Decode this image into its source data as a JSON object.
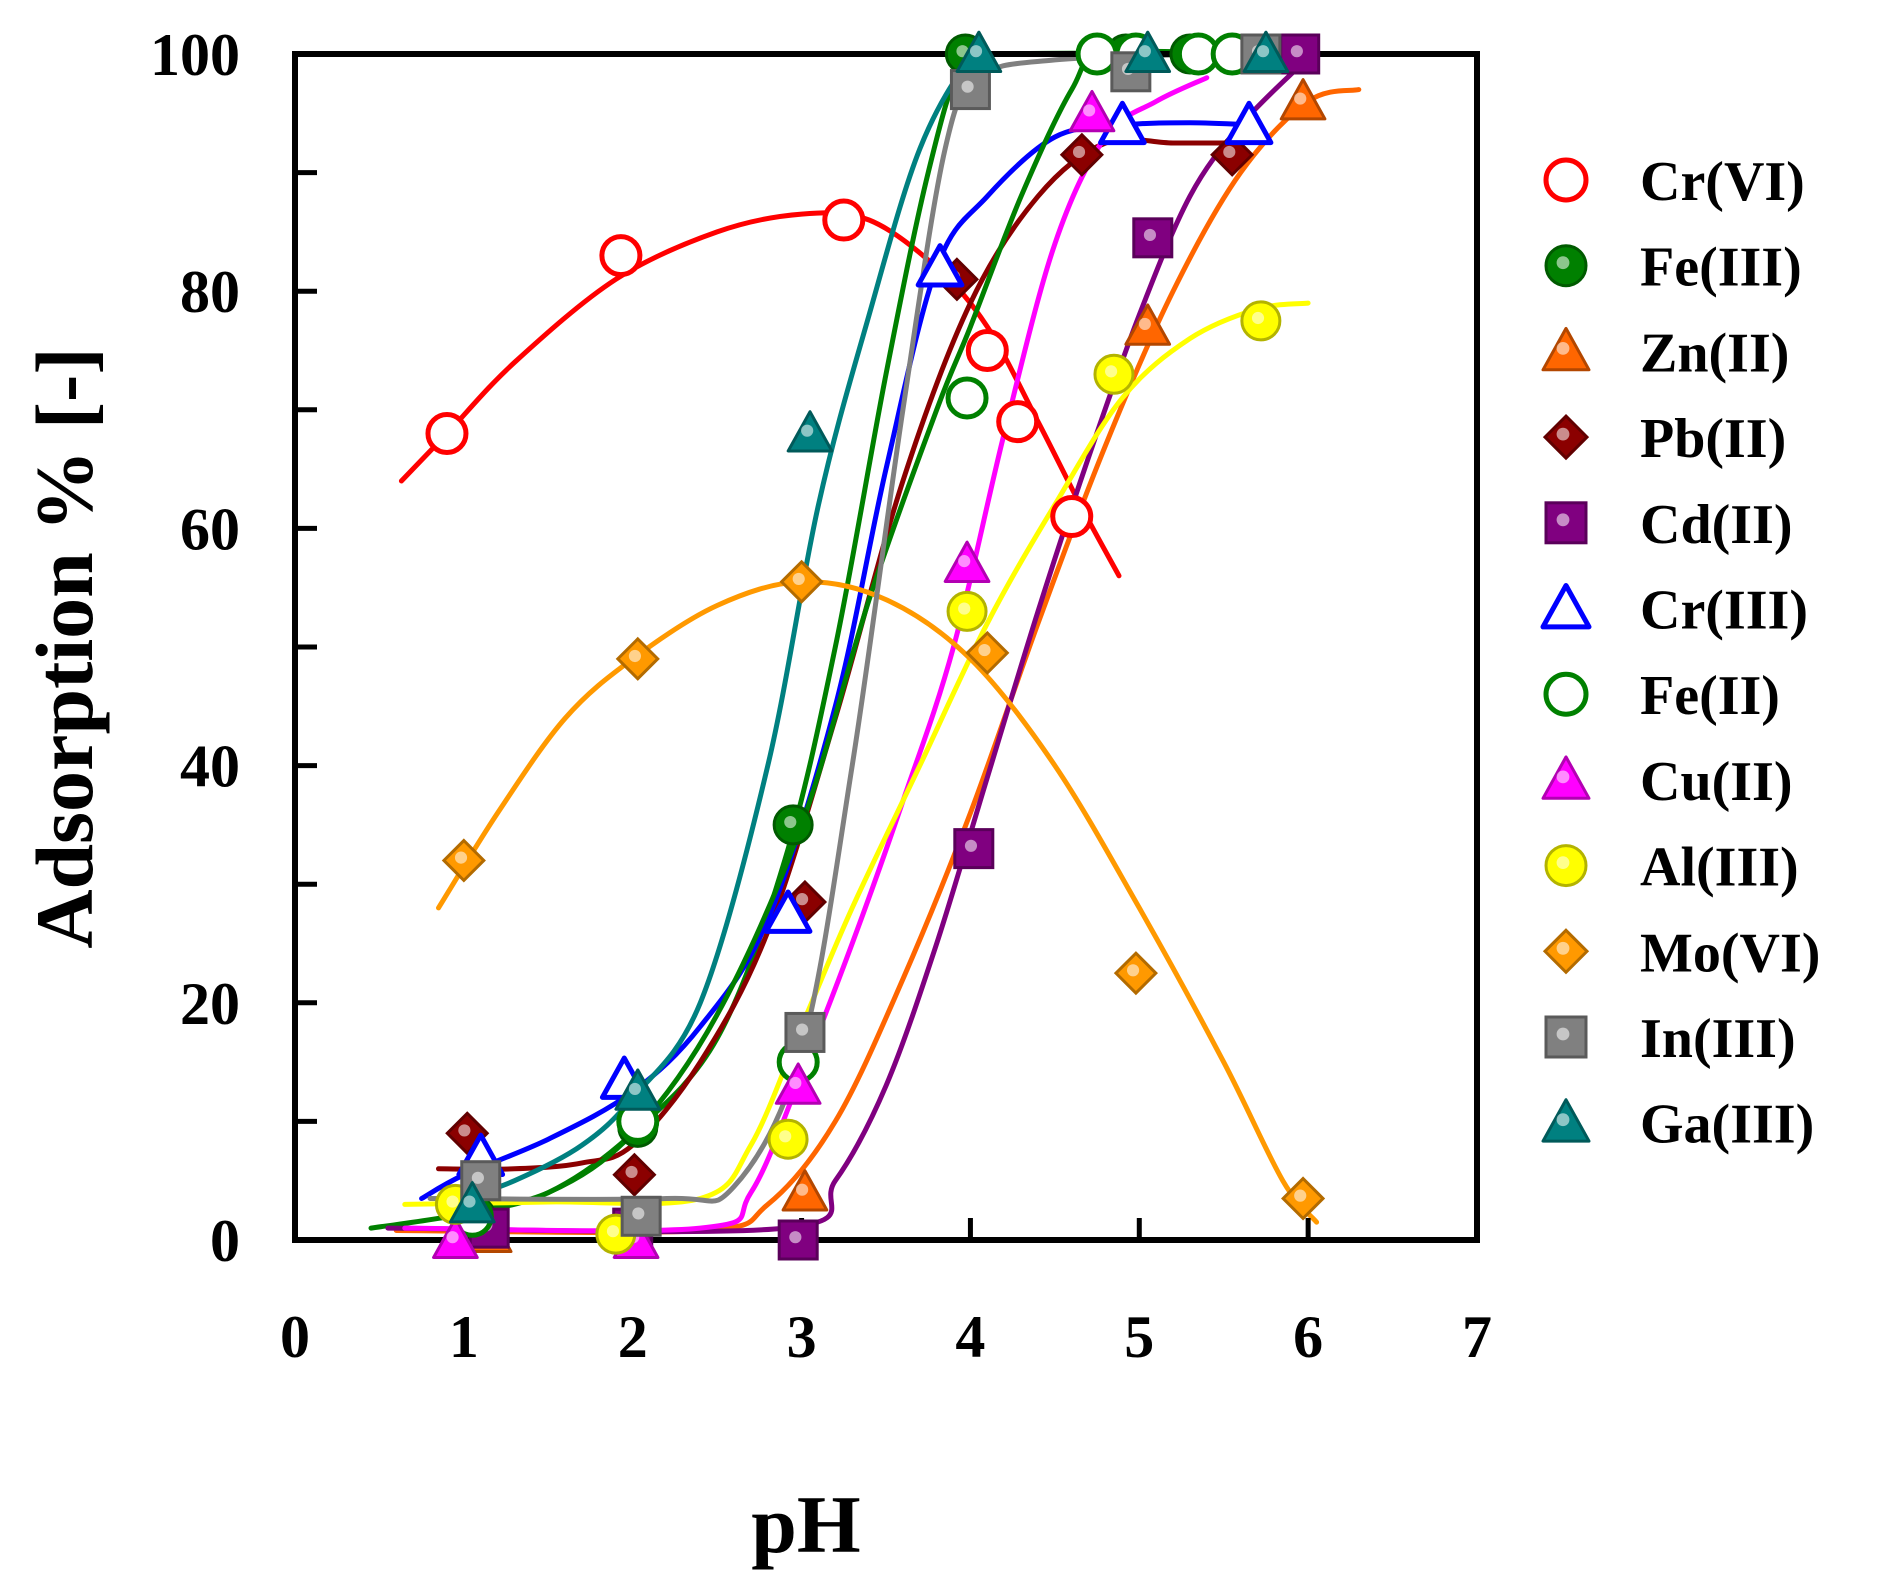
{
  "chart_data": {
    "type": "scatter",
    "xlabel": "pH",
    "ylabel": "Adsorption % [-]",
    "xlim": [
      0,
      7
    ],
    "ylim": [
      0,
      100
    ],
    "xticks": [
      0,
      1,
      2,
      3,
      4,
      5,
      6,
      7
    ],
    "yticks": [
      0,
      20,
      40,
      60,
      80,
      100
    ],
    "grid": false,
    "legend_position": "right-outside",
    "series": [
      {
        "name": "Cr(VI)",
        "marker": "circle",
        "filled": false,
        "color": "#ff0000",
        "points": [
          [
            0.9,
            68
          ],
          [
            1.93,
            83
          ],
          [
            3.25,
            86
          ],
          [
            4.1,
            75
          ],
          [
            4.28,
            69
          ],
          [
            4.6,
            61
          ]
        ],
        "curve": [
          [
            0.63,
            64
          ],
          [
            0.9,
            68
          ],
          [
            1.3,
            74
          ],
          [
            1.9,
            81
          ],
          [
            2.5,
            85
          ],
          [
            3.0,
            86.5
          ],
          [
            3.4,
            86
          ],
          [
            3.8,
            82
          ],
          [
            4.1,
            77
          ],
          [
            4.4,
            69
          ],
          [
            4.65,
            62
          ],
          [
            4.88,
            56
          ]
        ]
      },
      {
        "name": "Fe(III)",
        "marker": "circle",
        "filled": true,
        "color": "#008000",
        "points": [
          [
            1.07,
            2
          ],
          [
            2.03,
            9.5
          ],
          [
            2.95,
            35
          ],
          [
            3.97,
            100
          ],
          [
            4.92,
            100
          ],
          [
            5.3,
            100
          ],
          [
            5.55,
            100
          ],
          [
            5.65,
            100
          ]
        ],
        "curve": [
          [
            0.45,
            1
          ],
          [
            1.0,
            2.2
          ],
          [
            1.5,
            4
          ],
          [
            2.0,
            9
          ],
          [
            2.5,
            17
          ],
          [
            2.9,
            32
          ],
          [
            3.2,
            50
          ],
          [
            3.5,
            73
          ],
          [
            3.75,
            90
          ],
          [
            3.95,
            99
          ],
          [
            4.2,
            100
          ],
          [
            6.3,
            100
          ]
        ]
      },
      {
        "name": "Zn(II)",
        "marker": "triangle",
        "filled": true,
        "color": "#ff6600",
        "points": [
          [
            1.15,
            0.5
          ],
          [
            2.0,
            0.5
          ],
          [
            3.02,
            4
          ],
          [
            5.05,
            77
          ],
          [
            5.97,
            96
          ]
        ],
        "curve": [
          [
            0.6,
            0.8
          ],
          [
            2.4,
            0.8
          ],
          [
            2.8,
            3
          ],
          [
            3.2,
            10
          ],
          [
            3.6,
            22
          ],
          [
            4.0,
            36
          ],
          [
            4.4,
            52
          ],
          [
            4.8,
            67
          ],
          [
            5.2,
            80
          ],
          [
            5.6,
            90
          ],
          [
            6.0,
            96
          ],
          [
            6.3,
            97
          ]
        ]
      },
      {
        "name": "Pb(II)",
        "marker": "diamond",
        "filled": true,
        "color": "#8b0000",
        "points": [
          [
            1.02,
            9
          ],
          [
            2.01,
            5.5
          ],
          [
            3.02,
            28.5
          ],
          [
            3.92,
            81
          ],
          [
            4.66,
            91.5
          ],
          [
            5.55,
            91.5
          ]
        ],
        "curve": [
          [
            0.85,
            6
          ],
          [
            1.3,
            6
          ],
          [
            1.7,
            6.5
          ],
          [
            2.0,
            8
          ],
          [
            2.4,
            15
          ],
          [
            2.8,
            26
          ],
          [
            3.2,
            44
          ],
          [
            3.6,
            64
          ],
          [
            4.0,
            79
          ],
          [
            4.4,
            88
          ],
          [
            4.8,
            92.5
          ],
          [
            5.2,
            92.5
          ],
          [
            5.6,
            92.5
          ]
        ]
      },
      {
        "name": "Cd(II)",
        "marker": "square",
        "filled": true,
        "color": "#800080",
        "points": [
          [
            1.15,
            1
          ],
          [
            2.0,
            1
          ],
          [
            2.98,
            0
          ],
          [
            4.02,
            33
          ],
          [
            5.08,
            84.5
          ],
          [
            5.95,
            100
          ]
        ],
        "curve": [
          [
            0.55,
            1
          ],
          [
            2.9,
            1
          ],
          [
            3.2,
            5
          ],
          [
            3.5,
            13
          ],
          [
            3.8,
            25
          ],
          [
            4.1,
            39
          ],
          [
            4.4,
            53
          ],
          [
            4.7,
            66
          ],
          [
            5.0,
            78
          ],
          [
            5.3,
            88
          ],
          [
            5.6,
            94
          ],
          [
            5.95,
            99
          ]
        ]
      },
      {
        "name": "Cr(III)",
        "marker": "triangle",
        "filled": false,
        "color": "#0000ff",
        "points": [
          [
            1.1,
            7
          ],
          [
            1.95,
            13.5
          ],
          [
            2.92,
            27.5
          ],
          [
            3.82,
            82
          ],
          [
            4.9,
            94
          ],
          [
            5.65,
            94
          ]
        ],
        "curve": [
          [
            0.75,
            3.5
          ],
          [
            1.0,
            5.5
          ],
          [
            1.5,
            8.5
          ],
          [
            2.0,
            12.5
          ],
          [
            2.4,
            18
          ],
          [
            2.8,
            27
          ],
          [
            3.2,
            45
          ],
          [
            3.5,
            65
          ],
          [
            3.8,
            82
          ],
          [
            4.1,
            88
          ],
          [
            4.5,
            93
          ],
          [
            4.9,
            94
          ],
          [
            5.3,
            94.2
          ],
          [
            5.7,
            94
          ]
        ]
      },
      {
        "name": "Fe(II)",
        "marker": "circle",
        "filled": false,
        "color": "#008000",
        "points": [
          [
            1.05,
            2
          ],
          [
            2.03,
            10
          ],
          [
            2.98,
            15
          ],
          [
            3.98,
            71
          ],
          [
            4.75,
            100
          ],
          [
            4.98,
            100
          ],
          [
            5.35,
            100
          ],
          [
            5.55,
            100
          ]
        ],
        "curve": [
          [
            0.9,
            2
          ],
          [
            1.5,
            4
          ],
          [
            2.0,
            9
          ],
          [
            2.5,
            19
          ],
          [
            3.0,
            35
          ],
          [
            3.4,
            54
          ],
          [
            3.8,
            70
          ],
          [
            4.0,
            77
          ],
          [
            4.3,
            88
          ],
          [
            4.6,
            97
          ],
          [
            4.8,
            100
          ],
          [
            5.6,
            100
          ]
        ]
      },
      {
        "name": "Cu(II)",
        "marker": "triangle",
        "filled": true,
        "color": "#ff00ff",
        "points": [
          [
            0.95,
            0
          ],
          [
            2.02,
            0
          ],
          [
            2.98,
            13
          ],
          [
            3.98,
            57
          ],
          [
            4.72,
            95
          ]
        ],
        "curve": [
          [
            0.65,
            1
          ],
          [
            2.4,
            1
          ],
          [
            2.7,
            4
          ],
          [
            3.0,
            14
          ],
          [
            3.3,
            25
          ],
          [
            3.6,
            37
          ],
          [
            3.9,
            50
          ],
          [
            4.2,
            68
          ],
          [
            4.5,
            84
          ],
          [
            4.8,
            93
          ],
          [
            5.1,
            96
          ],
          [
            5.4,
            98
          ]
        ]
      },
      {
        "name": "Al(III)",
        "marker": "circle",
        "filled": true,
        "color": "#ffff00",
        "points": [
          [
            0.95,
            3
          ],
          [
            1.9,
            0.5
          ],
          [
            2.92,
            8.5
          ],
          [
            3.98,
            53
          ],
          [
            4.85,
            73
          ],
          [
            5.72,
            77.5
          ]
        ],
        "curve": [
          [
            0.65,
            3
          ],
          [
            1.5,
            3.2
          ],
          [
            2.4,
            3.5
          ],
          [
            2.7,
            8
          ],
          [
            3.0,
            18
          ],
          [
            3.3,
            28
          ],
          [
            3.7,
            40
          ],
          [
            4.1,
            52
          ],
          [
            4.5,
            62
          ],
          [
            4.9,
            71
          ],
          [
            5.3,
            76
          ],
          [
            5.7,
            78.5
          ],
          [
            6.0,
            79
          ]
        ]
      },
      {
        "name": "Mo(VI)",
        "marker": "diamond",
        "filled": true,
        "color": "#ff9900",
        "points": [
          [
            1.0,
            32
          ],
          [
            2.03,
            49
          ],
          [
            3.0,
            55.5
          ],
          [
            4.1,
            49.5
          ],
          [
            4.98,
            22.5
          ],
          [
            5.97,
            3.5
          ]
        ],
        "curve": [
          [
            0.85,
            28
          ],
          [
            1.2,
            36
          ],
          [
            1.6,
            44
          ],
          [
            2.0,
            49
          ],
          [
            2.5,
            53.5
          ],
          [
            3.0,
            55.5
          ],
          [
            3.5,
            54
          ],
          [
            4.0,
            49
          ],
          [
            4.5,
            40
          ],
          [
            5.0,
            28
          ],
          [
            5.5,
            15
          ],
          [
            5.85,
            5
          ],
          [
            6.05,
            1.5
          ]
        ]
      },
      {
        "name": "In(III)",
        "marker": "square",
        "filled": true,
        "color": "#808080",
        "points": [
          [
            1.1,
            5
          ],
          [
            2.05,
            2
          ],
          [
            3.02,
            17.5
          ],
          [
            4.0,
            97
          ],
          [
            4.95,
            98.5
          ],
          [
            5.72,
            100
          ]
        ],
        "curve": [
          [
            0.8,
            3.5
          ],
          [
            2.2,
            3.5
          ],
          [
            2.6,
            4.5
          ],
          [
            3.0,
            16
          ],
          [
            3.3,
            40
          ],
          [
            3.6,
            70
          ],
          [
            3.85,
            92
          ],
          [
            4.05,
            98
          ],
          [
            4.5,
            99.5
          ],
          [
            5.5,
            100
          ],
          [
            6.3,
            100
          ]
        ]
      },
      {
        "name": "Ga(III)",
        "marker": "triangle",
        "filled": true,
        "color": "#008080",
        "points": [
          [
            1.05,
            3
          ],
          [
            2.03,
            12.5
          ],
          [
            3.05,
            68
          ],
          [
            4.05,
            100
          ],
          [
            5.05,
            100
          ],
          [
            5.75,
            100
          ]
        ],
        "curve": [
          [
            0.9,
            3
          ],
          [
            1.3,
            5
          ],
          [
            1.7,
            8
          ],
          [
            2.0,
            12
          ],
          [
            2.4,
            20
          ],
          [
            2.8,
            40
          ],
          [
            3.1,
            62
          ],
          [
            3.4,
            78
          ],
          [
            3.7,
            92
          ],
          [
            4.0,
            99.5
          ],
          [
            4.2,
            100
          ],
          [
            5.8,
            100
          ]
        ]
      }
    ]
  }
}
